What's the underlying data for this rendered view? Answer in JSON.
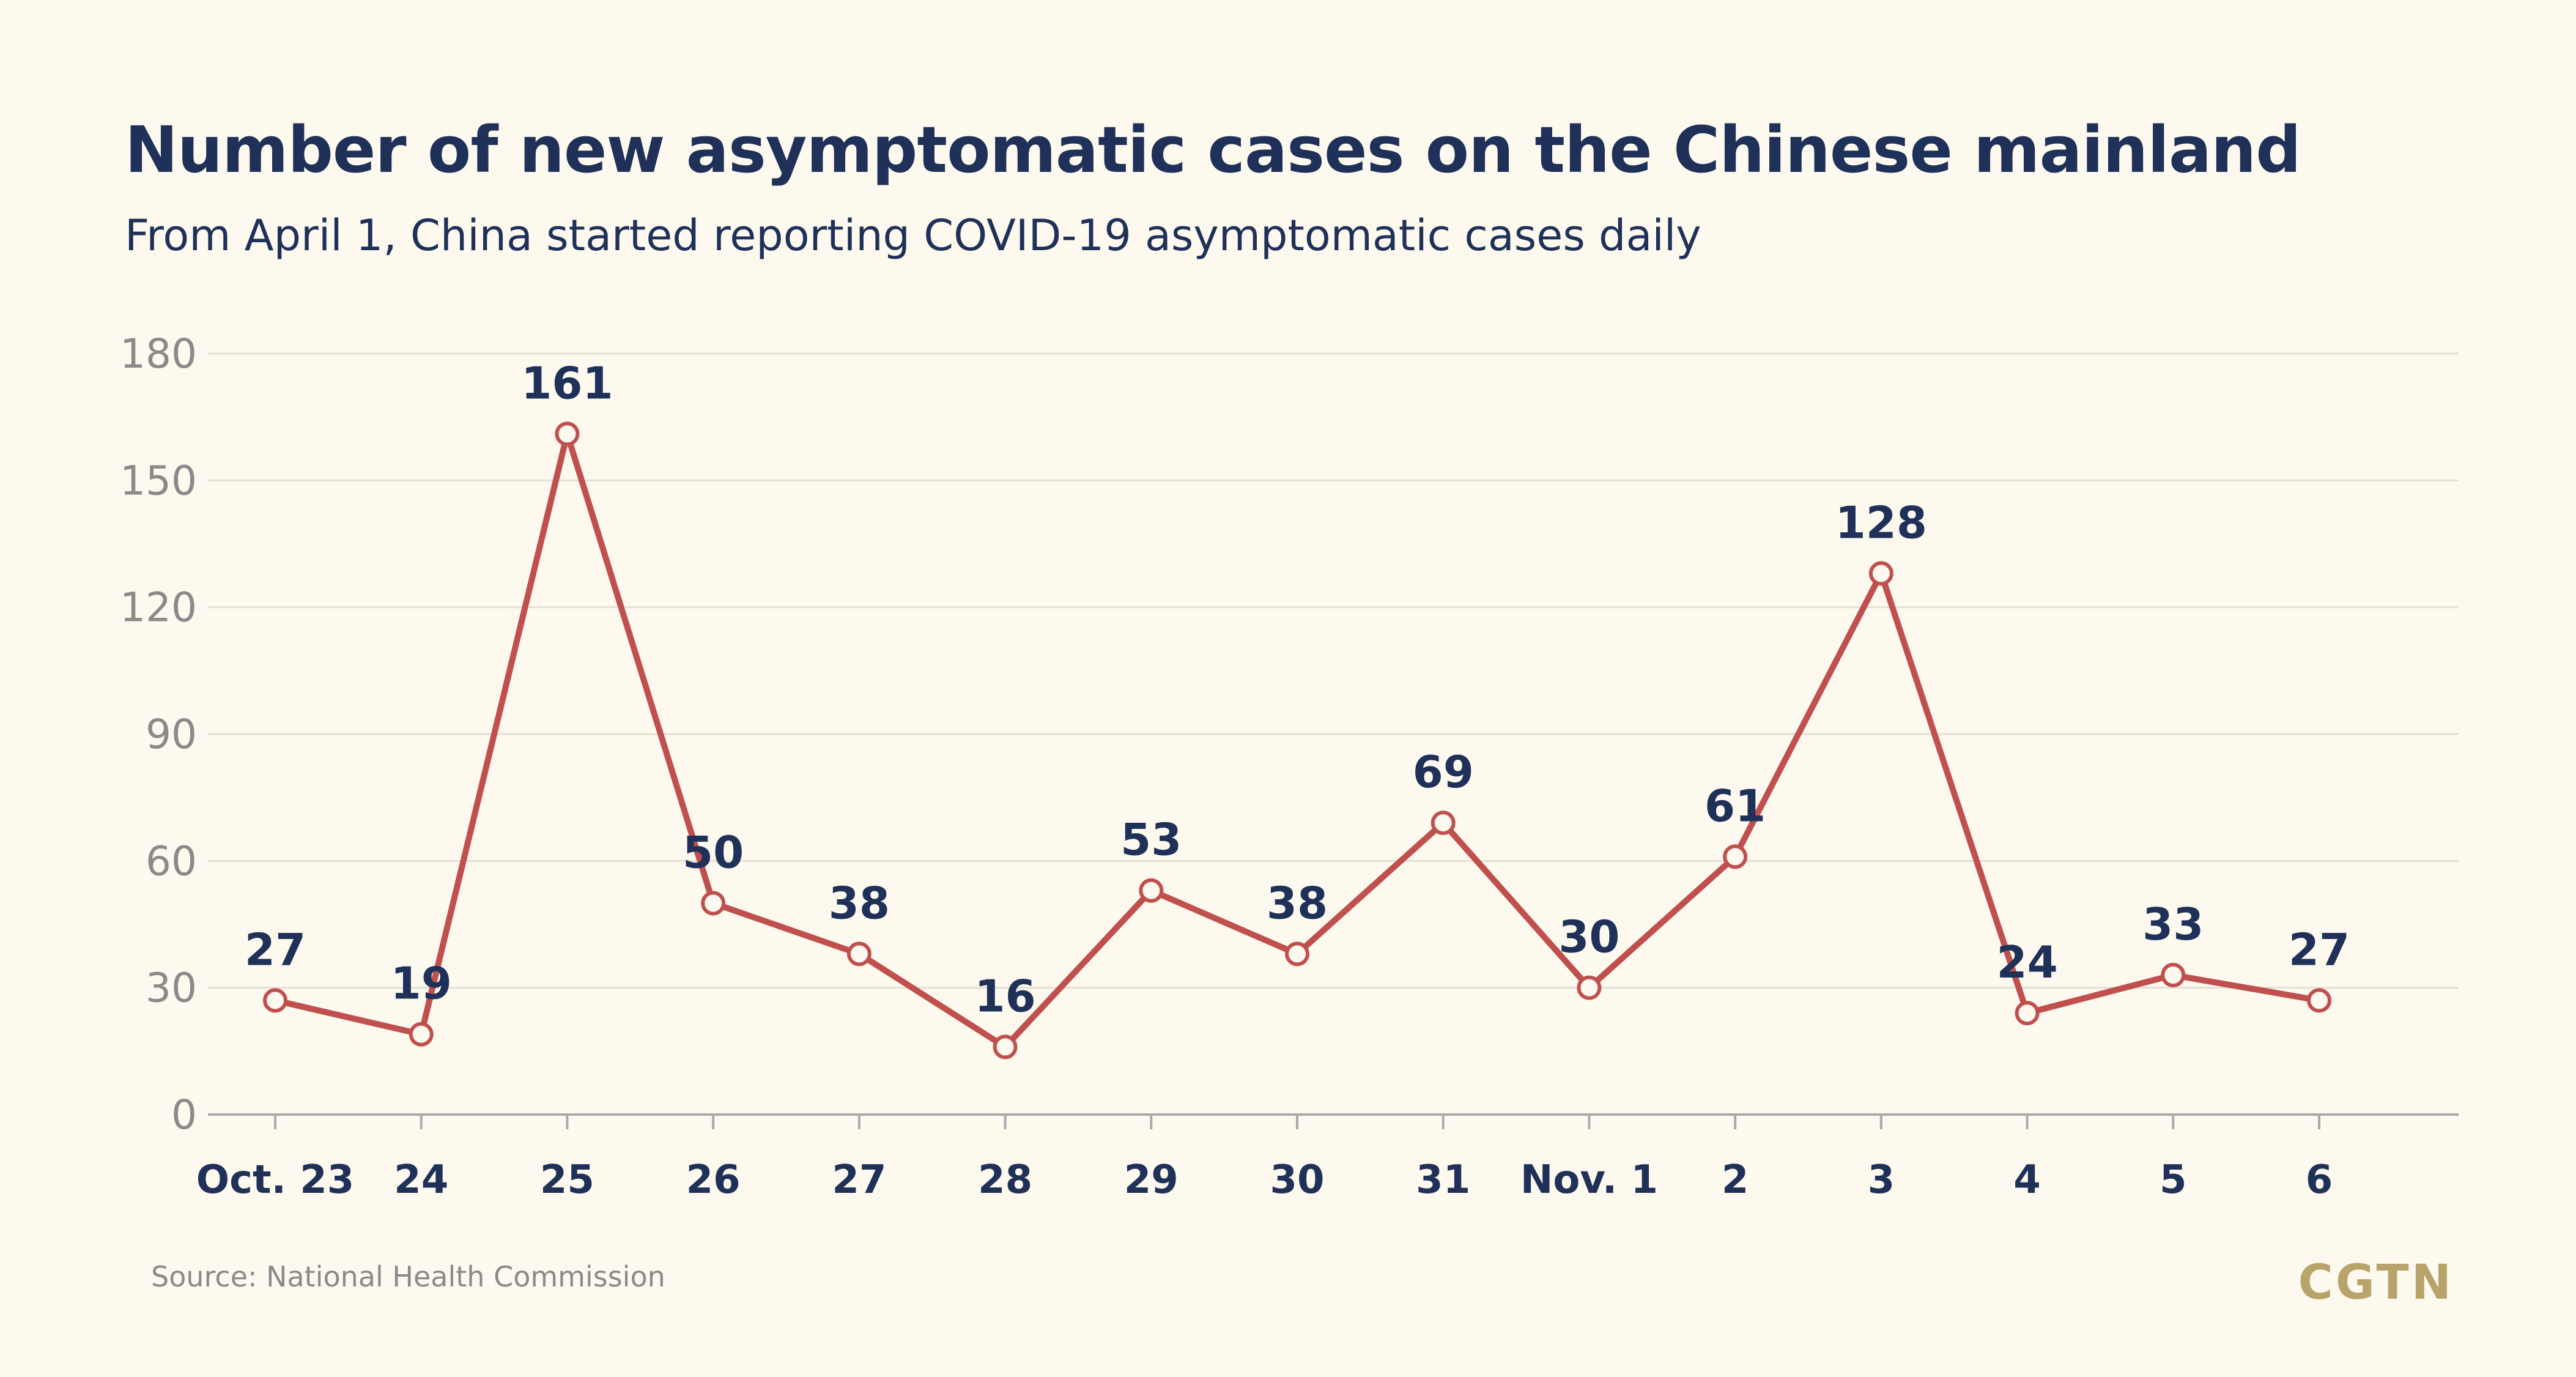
{
  "title": "Number of new asymptomatic cases on the Chinese mainland",
  "subtitle": "From April 1, China started reporting COVID-19 asymptomatic cases daily",
  "source": "Source: National Health Commission",
  "logo_text": "CGTN",
  "colors": {
    "background": "#fdf9ef",
    "line": "#c0504d",
    "marker_fill": "#fdf9ef",
    "text_primary": "#1f3158",
    "tick_text": "#8a8a8a",
    "grid": "#e4e0d4",
    "axis": "#aaaaaa",
    "logo": "#b8a46a"
  },
  "chart_data": {
    "type": "line",
    "title": "Number of new asymptomatic cases on the Chinese mainland",
    "subtitle": "From April 1, China started reporting COVID-19 asymptomatic cases daily",
    "xlabel": "",
    "ylabel": "",
    "categories": [
      "Oct. 23",
      "24",
      "25",
      "26",
      "27",
      "28",
      "29",
      "30",
      "31",
      "Nov. 1",
      "2",
      "3",
      "4",
      "5",
      "6"
    ],
    "series": [
      {
        "values": [
          27,
          19,
          161,
          50,
          38,
          16,
          53,
          38,
          69,
          30,
          61,
          128,
          24,
          33,
          27
        ]
      }
    ],
    "ylim": [
      0,
      180
    ],
    "yticks": [
      0,
      30,
      60,
      90,
      120,
      150,
      180
    ],
    "grid": true,
    "data_labels": true,
    "legend": "none"
  }
}
